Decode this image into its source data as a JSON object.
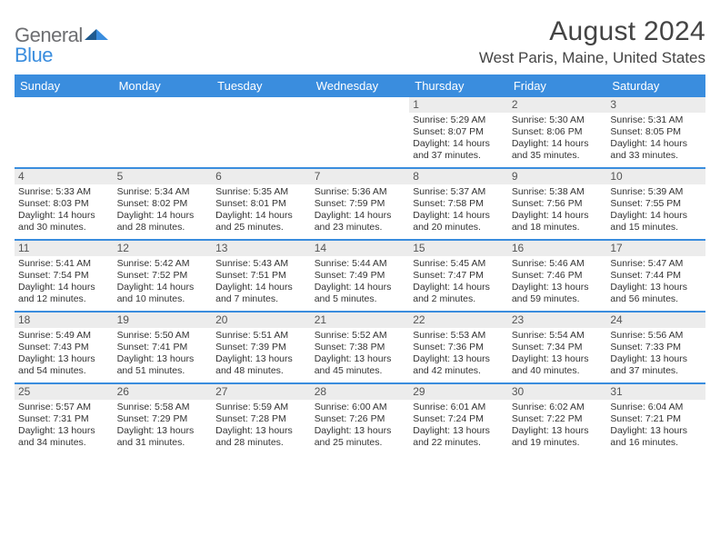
{
  "brand": {
    "part1": "General",
    "part2": "Blue"
  },
  "title": "August 2024",
  "location": "West Paris, Maine, United States",
  "colors": {
    "header_bg": "#3a8dde",
    "header_text": "#ffffff",
    "daynum_bg": "#ececec",
    "daynum_text": "#555555",
    "body_text": "#333333",
    "logo_gray": "#6d6e71",
    "logo_blue": "#3a8dde",
    "page_bg": "#ffffff",
    "week_divider": "#3a8dde"
  },
  "typography": {
    "title_fontsize": 30,
    "location_fontsize": 17,
    "dow_fontsize": 13,
    "daynum_fontsize": 12,
    "cell_fontsize": 10.5
  },
  "days_of_week": [
    "Sunday",
    "Monday",
    "Tuesday",
    "Wednesday",
    "Thursday",
    "Friday",
    "Saturday"
  ],
  "weeks": [
    [
      null,
      null,
      null,
      null,
      {
        "n": "1",
        "sr": "Sunrise: 5:29 AM",
        "ss": "Sunset: 8:07 PM",
        "dl": "Daylight: 14 hours and 37 minutes."
      },
      {
        "n": "2",
        "sr": "Sunrise: 5:30 AM",
        "ss": "Sunset: 8:06 PM",
        "dl": "Daylight: 14 hours and 35 minutes."
      },
      {
        "n": "3",
        "sr": "Sunrise: 5:31 AM",
        "ss": "Sunset: 8:05 PM",
        "dl": "Daylight: 14 hours and 33 minutes."
      }
    ],
    [
      {
        "n": "4",
        "sr": "Sunrise: 5:33 AM",
        "ss": "Sunset: 8:03 PM",
        "dl": "Daylight: 14 hours and 30 minutes."
      },
      {
        "n": "5",
        "sr": "Sunrise: 5:34 AM",
        "ss": "Sunset: 8:02 PM",
        "dl": "Daylight: 14 hours and 28 minutes."
      },
      {
        "n": "6",
        "sr": "Sunrise: 5:35 AM",
        "ss": "Sunset: 8:01 PM",
        "dl": "Daylight: 14 hours and 25 minutes."
      },
      {
        "n": "7",
        "sr": "Sunrise: 5:36 AM",
        "ss": "Sunset: 7:59 PM",
        "dl": "Daylight: 14 hours and 23 minutes."
      },
      {
        "n": "8",
        "sr": "Sunrise: 5:37 AM",
        "ss": "Sunset: 7:58 PM",
        "dl": "Daylight: 14 hours and 20 minutes."
      },
      {
        "n": "9",
        "sr": "Sunrise: 5:38 AM",
        "ss": "Sunset: 7:56 PM",
        "dl": "Daylight: 14 hours and 18 minutes."
      },
      {
        "n": "10",
        "sr": "Sunrise: 5:39 AM",
        "ss": "Sunset: 7:55 PM",
        "dl": "Daylight: 14 hours and 15 minutes."
      }
    ],
    [
      {
        "n": "11",
        "sr": "Sunrise: 5:41 AM",
        "ss": "Sunset: 7:54 PM",
        "dl": "Daylight: 14 hours and 12 minutes."
      },
      {
        "n": "12",
        "sr": "Sunrise: 5:42 AM",
        "ss": "Sunset: 7:52 PM",
        "dl": "Daylight: 14 hours and 10 minutes."
      },
      {
        "n": "13",
        "sr": "Sunrise: 5:43 AM",
        "ss": "Sunset: 7:51 PM",
        "dl": "Daylight: 14 hours and 7 minutes."
      },
      {
        "n": "14",
        "sr": "Sunrise: 5:44 AM",
        "ss": "Sunset: 7:49 PM",
        "dl": "Daylight: 14 hours and 5 minutes."
      },
      {
        "n": "15",
        "sr": "Sunrise: 5:45 AM",
        "ss": "Sunset: 7:47 PM",
        "dl": "Daylight: 14 hours and 2 minutes."
      },
      {
        "n": "16",
        "sr": "Sunrise: 5:46 AM",
        "ss": "Sunset: 7:46 PM",
        "dl": "Daylight: 13 hours and 59 minutes."
      },
      {
        "n": "17",
        "sr": "Sunrise: 5:47 AM",
        "ss": "Sunset: 7:44 PM",
        "dl": "Daylight: 13 hours and 56 minutes."
      }
    ],
    [
      {
        "n": "18",
        "sr": "Sunrise: 5:49 AM",
        "ss": "Sunset: 7:43 PM",
        "dl": "Daylight: 13 hours and 54 minutes."
      },
      {
        "n": "19",
        "sr": "Sunrise: 5:50 AM",
        "ss": "Sunset: 7:41 PM",
        "dl": "Daylight: 13 hours and 51 minutes."
      },
      {
        "n": "20",
        "sr": "Sunrise: 5:51 AM",
        "ss": "Sunset: 7:39 PM",
        "dl": "Daylight: 13 hours and 48 minutes."
      },
      {
        "n": "21",
        "sr": "Sunrise: 5:52 AM",
        "ss": "Sunset: 7:38 PM",
        "dl": "Daylight: 13 hours and 45 minutes."
      },
      {
        "n": "22",
        "sr": "Sunrise: 5:53 AM",
        "ss": "Sunset: 7:36 PM",
        "dl": "Daylight: 13 hours and 42 minutes."
      },
      {
        "n": "23",
        "sr": "Sunrise: 5:54 AM",
        "ss": "Sunset: 7:34 PM",
        "dl": "Daylight: 13 hours and 40 minutes."
      },
      {
        "n": "24",
        "sr": "Sunrise: 5:56 AM",
        "ss": "Sunset: 7:33 PM",
        "dl": "Daylight: 13 hours and 37 minutes."
      }
    ],
    [
      {
        "n": "25",
        "sr": "Sunrise: 5:57 AM",
        "ss": "Sunset: 7:31 PM",
        "dl": "Daylight: 13 hours and 34 minutes."
      },
      {
        "n": "26",
        "sr": "Sunrise: 5:58 AM",
        "ss": "Sunset: 7:29 PM",
        "dl": "Daylight: 13 hours and 31 minutes."
      },
      {
        "n": "27",
        "sr": "Sunrise: 5:59 AM",
        "ss": "Sunset: 7:28 PM",
        "dl": "Daylight: 13 hours and 28 minutes."
      },
      {
        "n": "28",
        "sr": "Sunrise: 6:00 AM",
        "ss": "Sunset: 7:26 PM",
        "dl": "Daylight: 13 hours and 25 minutes."
      },
      {
        "n": "29",
        "sr": "Sunrise: 6:01 AM",
        "ss": "Sunset: 7:24 PM",
        "dl": "Daylight: 13 hours and 22 minutes."
      },
      {
        "n": "30",
        "sr": "Sunrise: 6:02 AM",
        "ss": "Sunset: 7:22 PM",
        "dl": "Daylight: 13 hours and 19 minutes."
      },
      {
        "n": "31",
        "sr": "Sunrise: 6:04 AM",
        "ss": "Sunset: 7:21 PM",
        "dl": "Daylight: 13 hours and 16 minutes."
      }
    ]
  ]
}
